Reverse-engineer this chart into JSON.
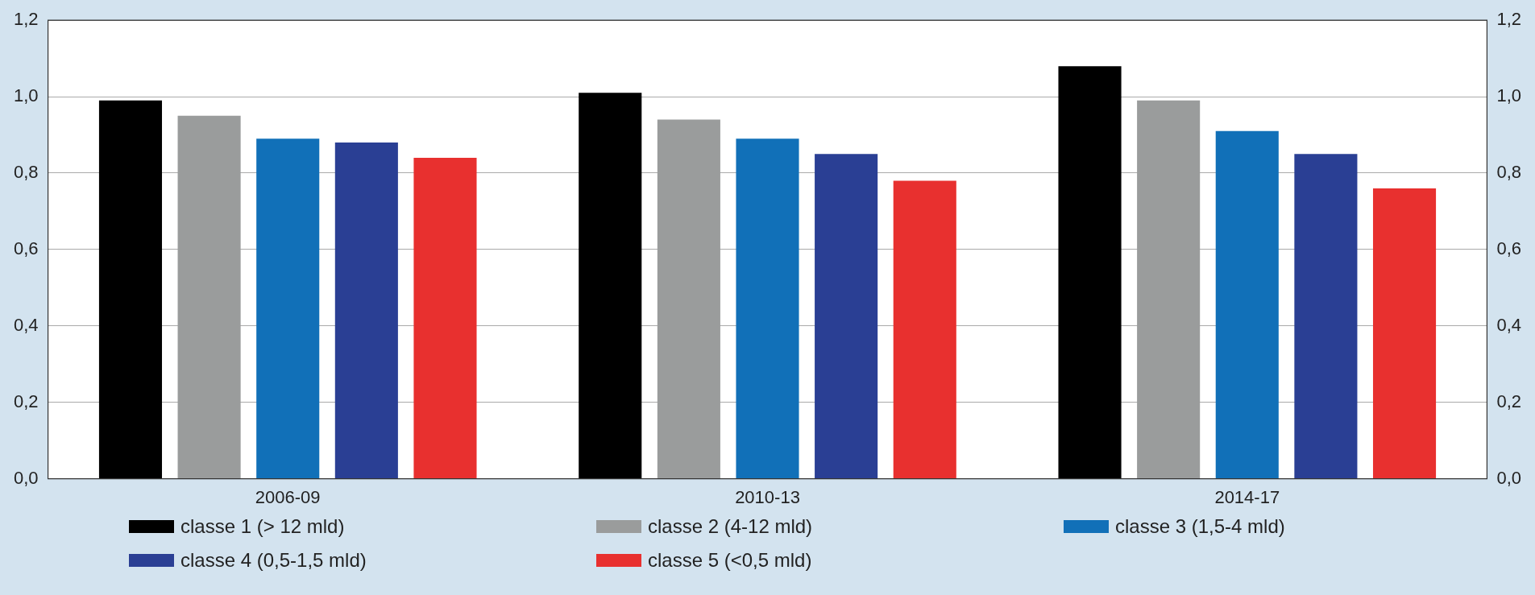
{
  "chart_data": {
    "type": "bar",
    "categories": [
      "2006-09",
      "2010-13",
      "2014-17"
    ],
    "series": [
      {
        "name": "classe 1 (> 12 mld)",
        "color": "#000000",
        "values": [
          0.99,
          1.01,
          1.08
        ]
      },
      {
        "name": "classe 2 (4-12 mld)",
        "color": "#9a9c9c",
        "values": [
          0.95,
          0.94,
          0.99
        ]
      },
      {
        "name": "classe 3 (1,5-4 mld)",
        "color": "#1170b8",
        "values": [
          0.89,
          0.89,
          0.91
        ]
      },
      {
        "name": "classe 4 (0,5-1,5 mld)",
        "color": "#2a3f94",
        "values": [
          0.88,
          0.85,
          0.85
        ]
      },
      {
        "name": "classe 5 (<0,5 mld)",
        "color": "#e8302f",
        "values": [
          0.84,
          0.78,
          0.76
        ]
      }
    ],
    "ylim": [
      0,
      1.2
    ],
    "yticks": [
      {
        "value": 0,
        "label": "0,0"
      },
      {
        "value": 0.2,
        "label": "0,2"
      },
      {
        "value": 0.4,
        "label": "0,4"
      },
      {
        "value": 0.6,
        "label": "0,6"
      },
      {
        "value": 0.8,
        "label": "0,8"
      },
      {
        "value": 1,
        "label": "1,0"
      },
      {
        "value": 1.2,
        "label": "1,2"
      }
    ],
    "y2lim": [
      0,
      1.2
    ],
    "y2ticks": [
      {
        "value": 0,
        "label": "0,0"
      },
      {
        "value": 0.2,
        "label": "0,2"
      },
      {
        "value": 0.4,
        "label": "0,4"
      },
      {
        "value": 0.6,
        "label": "0,6"
      },
      {
        "value": 0.8,
        "label": "0,8"
      },
      {
        "value": 1,
        "label": "1,0"
      },
      {
        "value": 1.2,
        "label": "1,2"
      }
    ],
    "grid": "y",
    "legend": "bottom"
  }
}
